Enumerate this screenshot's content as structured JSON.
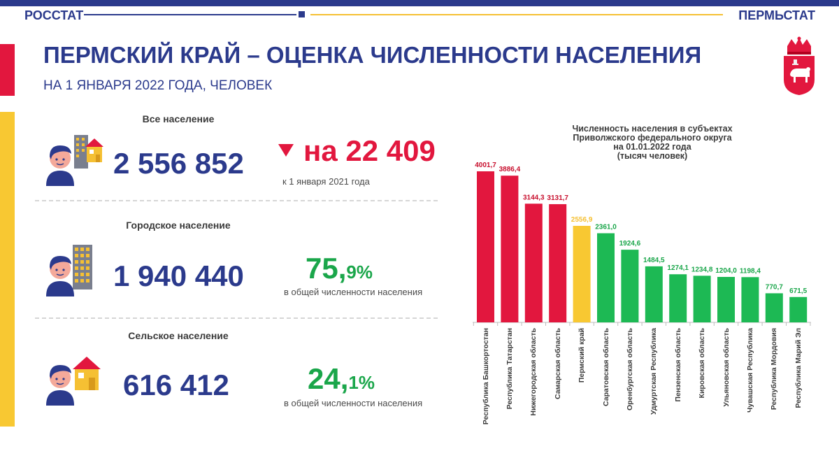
{
  "header": {
    "brand_left": "РОССТАТ",
    "brand_right": "ПЕРМЬСТАТ",
    "title": "ПЕРМСКИЙ КРАЙ – ОЦЕНКА ЧИСЛЕННОСТИ НАСЕЛЕНИЯ",
    "subtitle": "НА 1 ЯНВАРЯ 2022 ГОДА, ЧЕЛОВЕК"
  },
  "colors": {
    "navy": "#2b3a8c",
    "red": "#e2173e",
    "green": "#1aa64a",
    "gold": "#f5c033"
  },
  "total": {
    "label": "Все население",
    "value": "2 556 852",
    "change": "на 22 409",
    "change_note": "к 1 января 2021 года"
  },
  "urban": {
    "label": "Городское население",
    "value": "1 940 440",
    "pct_int": "75,",
    "pct_dec": "9%",
    "note": "в общей численности населения"
  },
  "rural": {
    "label": "Сельское население",
    "value": "616 412",
    "pct_int": "24,",
    "pct_dec": "1%",
    "note": "в общей численности населения"
  },
  "chart_data": {
    "type": "bar",
    "title": "Численность населения в субъектах Приволжского федерального округа на 01.01.2022 года (тысяч человек)",
    "title_lines": [
      "Численность населения в субъектах",
      "Приволжского федерального округа",
      "на 01.01.2022 года",
      "(тысяч человек)"
    ],
    "ylabel": "тысяч человек",
    "xlabel": "",
    "ylim": [
      0,
      4001.7
    ],
    "categories": [
      "Республика Башкортостан",
      "Республика Татарстан",
      "Нижегородская область",
      "Самарская область",
      "Пермский край",
      "Саратовская область",
      "Оренбургская область",
      "Удмуртская Республика",
      "Пензенская область",
      "Кировская область",
      "Ульяновская область",
      "Чувашская Республика",
      "Республика Мордовия",
      "Республика Марий Эл"
    ],
    "values": [
      4001.7,
      3886.4,
      3144.3,
      3131.7,
      2556.9,
      2361.0,
      1924.6,
      1484.5,
      1274.1,
      1234.8,
      1204.0,
      1198.4,
      770.7,
      671.5
    ],
    "value_labels": [
      "4001,7",
      "3886,4",
      "3144,3",
      "3131,7",
      "2556,9",
      "2361,0",
      "1924,6",
      "1484,5",
      "1274,1",
      "1234,8",
      "1204,0",
      "1198,4",
      "770,7",
      "671,5"
    ],
    "bar_colors": [
      "#e2173e",
      "#e2173e",
      "#e2173e",
      "#e2173e",
      "#f8c832",
      "#1db954",
      "#1db954",
      "#1db954",
      "#1db954",
      "#1db954",
      "#1db954",
      "#1db954",
      "#1db954",
      "#1db954"
    ],
    "label_colors": [
      "#c8102e",
      "#c8102e",
      "#c8102e",
      "#c8102e",
      "#f5c033",
      "#1aa64a",
      "#1aa64a",
      "#1aa64a",
      "#1aa64a",
      "#1aa64a",
      "#1aa64a",
      "#1aa64a",
      "#1aa64a",
      "#1aa64a"
    ]
  }
}
